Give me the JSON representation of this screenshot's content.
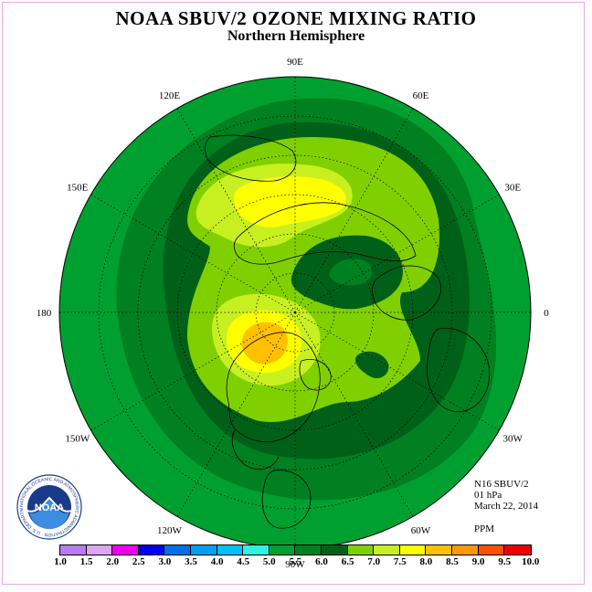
{
  "title": "NOAA SBUV/2 OZONE MIXING RATIO",
  "subtitle": "Northern Hemisphere",
  "longitude_labels": [
    "90E",
    "60E",
    "30E",
    "0",
    "30W",
    "60W",
    "90W",
    "120W",
    "150W",
    "180",
    "150E",
    "120E"
  ],
  "info": {
    "instrument": "N16 SBUV/2",
    "level": "01 hPa",
    "date": "March 22, 2014",
    "units": "PPM"
  },
  "colorbar": {
    "ticks": [
      "1.0",
      "1.5",
      "2.0",
      "2.5",
      "3.0",
      "3.5",
      "4.0",
      "4.5",
      "5.0",
      "5.5",
      "6.0",
      "6.5",
      "7.0",
      "7.5",
      "8.0",
      "8.5",
      "9.0",
      "9.5",
      "10.0"
    ],
    "colors": [
      "#b77cf0",
      "#dda6f5",
      "#ee00ee",
      "#0000ee",
      "#0070e8",
      "#00a0f0",
      "#00c0ff",
      "#30f0e0",
      "#00a030",
      "#008020",
      "#006018",
      "#80d000",
      "#c8f020",
      "#ffff00",
      "#ffc000",
      "#ff9800",
      "#ff5000",
      "#ee0000",
      "#8b4513"
    ]
  },
  "logo_text": "NOAA",
  "logo_ring_text": "NATIONAL OCEANIC AND ATMOSPHERIC ADMINISTRATION · U.S. DEPARTMENT OF COMMERCE"
}
